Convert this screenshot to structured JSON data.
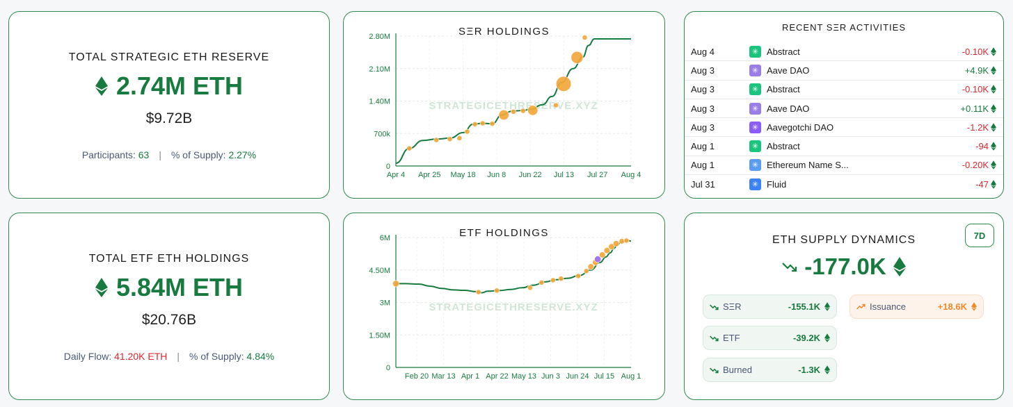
{
  "colors": {
    "accent": "#177a3e",
    "negative": "#e0262d",
    "orange": "#f0892a",
    "dot": "#f3a73a",
    "purple": "#9a6cf0"
  },
  "ser_reserve": {
    "title": "TOTAL STRATEGIC ETH RESERVE",
    "value": "2.74M ETH",
    "usd": "$9.72B",
    "participants_label": "Participants:",
    "participants_value": "63",
    "supply_label": "% of Supply:",
    "supply_value": "2.27%"
  },
  "etf_reserve": {
    "title": "TOTAL ETF ETH HOLDINGS",
    "value": "5.84M ETH",
    "usd": "$20.76B",
    "flow_label": "Daily Flow:",
    "flow_value": "41.20K ETH",
    "supply_label": "% of Supply:",
    "supply_value": "4.84%"
  },
  "ser_chart": {
    "title": "SΞR HOLDINGS",
    "watermark": "STRATEGICETHRESERVE.XYZ"
  },
  "etf_chart": {
    "title": "ETF HOLDINGS",
    "watermark": "STRATEGICETHRESERVE.XYZ"
  },
  "chart_data": [
    {
      "type": "line",
      "title": "SΞR HOLDINGS",
      "x_ticks": [
        "Apr 4",
        "Apr 25",
        "May 18",
        "Jun 8",
        "Jun 22",
        "Jul 13",
        "Jul 27",
        "Aug 4"
      ],
      "y_ticks": [
        "0",
        "700k",
        "1.40M",
        "2.10M",
        "2.80M"
      ],
      "ylim": [
        0,
        2800000
      ],
      "x_domain": [
        0,
        122
      ],
      "series": [
        {
          "x": [
            0,
            7,
            14,
            21,
            28,
            35,
            40,
            45,
            50,
            55,
            60,
            63,
            66,
            70,
            76,
            81,
            86,
            92,
            97,
            100,
            103,
            106,
            110,
            115,
            118,
            122
          ],
          "values": [
            60000,
            380000,
            550000,
            580000,
            600000,
            720000,
            900000,
            920000,
            910000,
            1100000,
            1180000,
            1190000,
            1200000,
            1220000,
            1320000,
            1500000,
            1800000,
            2100000,
            2350000,
            2600000,
            2740000,
            2740000,
            2740000,
            2740000,
            2740000,
            2740000
          ]
        }
      ],
      "markers": [
        {
          "x": 7,
          "y": 380000,
          "size": 1
        },
        {
          "x": 21,
          "y": 560000,
          "size": 1
        },
        {
          "x": 28,
          "y": 580000,
          "size": 1
        },
        {
          "x": 33,
          "y": 600000,
          "size": 1
        },
        {
          "x": 37,
          "y": 740000,
          "size": 1
        },
        {
          "x": 41,
          "y": 900000,
          "size": 1
        },
        {
          "x": 45,
          "y": 920000,
          "size": 1
        },
        {
          "x": 50,
          "y": 910000,
          "size": 1
        },
        {
          "x": 56,
          "y": 1100000,
          "size": 2
        },
        {
          "x": 61,
          "y": 1170000,
          "size": 1
        },
        {
          "x": 66,
          "y": 1190000,
          "size": 1
        },
        {
          "x": 71,
          "y": 1200000,
          "size": 2
        },
        {
          "x": 83,
          "y": 1310000,
          "size": 1
        },
        {
          "x": 87,
          "y": 1770000,
          "size": 3
        },
        {
          "x": 94,
          "y": 2340000,
          "size": 2.4
        },
        {
          "x": 98,
          "y": 2770000,
          "size": 1
        }
      ]
    },
    {
      "type": "line",
      "title": "ETF HOLDINGS",
      "x_ticks": [
        "Feb 20",
        "Mar 13",
        "Apr 1",
        "Apr 22",
        "May 13",
        "Jun 3",
        "Jun 24",
        "Jul 15",
        "Aug 1"
      ],
      "y_ticks": [
        "0",
        "1.50M",
        "3M",
        "4.50M",
        "6M"
      ],
      "ylim": [
        0,
        6000000
      ],
      "series": [
        {
          "x": [
            0,
            8,
            20,
            30,
            40,
            50,
            60,
            70,
            75,
            80,
            90,
            100,
            110,
            120,
            130,
            140,
            150,
            160,
            170,
            178,
            183,
            187,
            190,
            193,
            196,
            199,
            202,
            205
          ],
          "values": [
            3870000,
            3870000,
            3850000,
            3750000,
            3650000,
            3580000,
            3560000,
            3500000,
            3450000,
            3520000,
            3550000,
            3600000,
            3680000,
            3800000,
            3950000,
            4050000,
            4120000,
            4250000,
            4500000,
            4850000,
            5100000,
            5300000,
            5500000,
            5650000,
            5780000,
            5850000,
            5860000,
            5840000
          ]
        }
      ],
      "markers": [
        {
          "x": 0,
          "y": 3870000,
          "color": "dot",
          "size": 1.3
        },
        {
          "x": 72,
          "y": 3480000,
          "color": "dot",
          "size": 1
        },
        {
          "x": 88,
          "y": 3550000,
          "color": "dot",
          "size": 1
        },
        {
          "x": 117,
          "y": 3680000,
          "color": "dot",
          "size": 1
        },
        {
          "x": 127,
          "y": 3920000,
          "color": "dot",
          "size": 1
        },
        {
          "x": 137,
          "y": 4030000,
          "color": "dot",
          "size": 1
        },
        {
          "x": 144,
          "y": 4100000,
          "color": "dot",
          "size": 1
        },
        {
          "x": 159,
          "y": 4220000,
          "color": "dot",
          "size": 1
        },
        {
          "x": 166,
          "y": 4450000,
          "color": "dot",
          "size": 1
        },
        {
          "x": 170,
          "y": 4650000,
          "color": "dot",
          "size": 1.2
        },
        {
          "x": 174,
          "y": 4850000,
          "color": "dot",
          "size": 1.2
        },
        {
          "x": 176,
          "y": 5000000,
          "color": "purple",
          "size": 1.3
        },
        {
          "x": 180,
          "y": 5200000,
          "color": "dot",
          "size": 1.2
        },
        {
          "x": 184,
          "y": 5400000,
          "color": "dot",
          "size": 1.2
        },
        {
          "x": 188,
          "y": 5580000,
          "color": "dot",
          "size": 1.2
        },
        {
          "x": 192,
          "y": 5720000,
          "color": "dot",
          "size": 1.2
        },
        {
          "x": 197,
          "y": 5830000,
          "color": "dot",
          "size": 1.1
        },
        {
          "x": 201,
          "y": 5860000,
          "color": "dot",
          "size": 1
        }
      ]
    }
  ],
  "activities": {
    "title": "RECENT SΞR ACTIVITIES",
    "rows": [
      {
        "date": "Aug 4",
        "name": "Abstract",
        "amount": "-0.10K",
        "sign": "neg",
        "logo": "abstract-logo",
        "logo_color": "#1bc47d"
      },
      {
        "date": "Aug 3",
        "name": "Aave DAO",
        "amount": "+4.9K",
        "sign": "pos",
        "logo": "aave-logo",
        "logo_color": "#9b7de8"
      },
      {
        "date": "Aug 3",
        "name": "Abstract",
        "amount": "-0.10K",
        "sign": "neg",
        "logo": "abstract-logo",
        "logo_color": "#1bc47d"
      },
      {
        "date": "Aug 3",
        "name": "Aave DAO",
        "amount": "+0.11K",
        "sign": "pos",
        "logo": "aave-logo",
        "logo_color": "#9b7de8"
      },
      {
        "date": "Aug 3",
        "name": "Aavegotchi DAO",
        "amount": "-1.2K",
        "sign": "neg",
        "logo": "aavegotchi-logo",
        "logo_color": "#8b5cf6"
      },
      {
        "date": "Aug 1",
        "name": "Abstract",
        "amount": "-94",
        "sign": "neg",
        "logo": "abstract-logo",
        "logo_color": "#1bc47d"
      },
      {
        "date": "Aug 1",
        "name": "Ethereum Name S...",
        "amount": "-0.20K",
        "sign": "neg",
        "logo": "ens-logo",
        "logo_color": "#5a9cf5"
      },
      {
        "date": "Jul 31",
        "name": "Fluid",
        "amount": "-47",
        "sign": "neg",
        "logo": "fluid-logo",
        "logo_color": "#3b82f6"
      }
    ]
  },
  "supply": {
    "title": "ETH SUPPLY DYNAMICS",
    "value": "-177.0K",
    "period": "7D",
    "ser_label": "SΞR",
    "ser_value": "-155.1K",
    "etf_label": "ETF",
    "etf_value": "-39.2K",
    "burned_label": "Burned",
    "burned_value": "-1.3K",
    "issuance_label": "Issuance",
    "issuance_value": "+18.6K"
  }
}
